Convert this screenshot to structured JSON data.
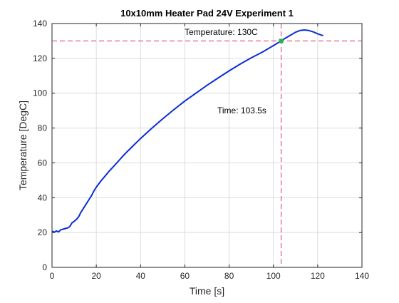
{
  "chart_data": {
    "type": "line",
    "title": "10x10mm Heater Pad 24V Experiment 1",
    "xlabel": "Time [s]",
    "ylabel": "Temperature [DegC]",
    "xlim": [
      0,
      140
    ],
    "ylim": [
      0,
      140
    ],
    "xticks": [
      0,
      20,
      40,
      60,
      80,
      100,
      120,
      140
    ],
    "yticks": [
      0,
      20,
      40,
      60,
      80,
      100,
      120,
      140
    ],
    "grid": true,
    "series": [
      {
        "color": "#0b2bd6",
        "x": [
          0,
          1,
          2,
          3,
          4,
          5,
          6,
          7,
          8,
          9,
          10,
          11,
          12,
          13,
          14,
          15,
          16,
          17,
          18,
          19,
          20,
          22,
          24,
          26,
          28,
          30,
          32,
          34,
          36,
          38,
          40,
          45,
          50,
          55,
          60,
          65,
          70,
          75,
          80,
          85,
          90,
          95,
          100,
          103.5,
          105,
          108,
          110,
          112,
          114,
          116,
          118,
          120,
          122.5
        ],
        "y": [
          20.8,
          20.2,
          20.9,
          20.4,
          21.6,
          21.9,
          22.3,
          22.6,
          23.4,
          25.5,
          26.4,
          27.5,
          29.0,
          31.5,
          33.5,
          35.5,
          37.5,
          39.5,
          41.5,
          44.0,
          46.0,
          49.5,
          52.5,
          55.5,
          58.2,
          61.0,
          63.8,
          66.5,
          69.0,
          71.5,
          74.0,
          79.8,
          85.3,
          90.5,
          95.5,
          100.0,
          104.5,
          108.7,
          112.8,
          116.7,
          120.3,
          123.6,
          127.3,
          130.0,
          131.3,
          133.5,
          135.0,
          136.0,
          136.3,
          136.0,
          135.2,
          134.1,
          133.0
        ]
      }
    ],
    "crosshair": {
      "x": 103.5,
      "y": 130,
      "line_color": "#d6336e",
      "marker_color": "#22b14c",
      "labels": {
        "temperature": "Temperature: 130C",
        "time": "Time: 103.5s"
      }
    }
  }
}
